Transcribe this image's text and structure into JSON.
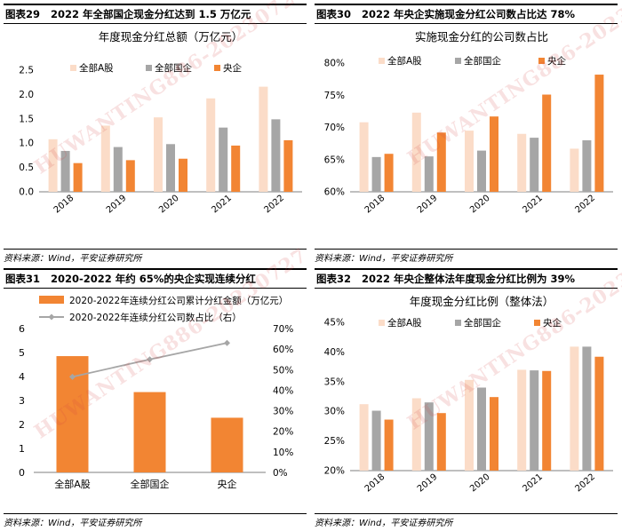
{
  "colors": {
    "all_a": "#FBDCC8",
    "soe": "#A6A6A6",
    "central": "#F28533",
    "line": "#A6A6A6"
  },
  "watermark": "HUWANTING886-20230727",
  "panels": {
    "p1": {
      "num": "图表29",
      "title": "2022 年全部国企现金分红达到 1.5 万亿元",
      "source": "资料来源：Wind，平安证券研究所"
    },
    "p2": {
      "num": "图表30",
      "title": "2022 年央企实施现金分红公司数占比达 78%",
      "source": "资料来源：Wind，平安证券研究所"
    },
    "p3": {
      "num": "图表31",
      "title": "2020-2022 年约 65%的央企实现连续分红",
      "source": "资料来源：Wind，平安证券研究所"
    },
    "p4": {
      "num": "图表32",
      "title": "2022 年央企整体法年度现金分红比例为 39%",
      "source": "资料来源：Wind，平安证券研究所"
    }
  },
  "chart_data": [
    {
      "id": "c1",
      "type": "bar",
      "title": "年度现金分红总额（万亿元）",
      "categories": [
        "2018",
        "2019",
        "2020",
        "2021",
        "2022"
      ],
      "series": [
        {
          "name": "全部A股",
          "values": [
            1.08,
            1.36,
            1.53,
            1.92,
            2.16
          ]
        },
        {
          "name": "全部国企",
          "values": [
            0.84,
            0.92,
            0.98,
            1.32,
            1.49
          ]
        },
        {
          "name": "央企",
          "values": [
            0.59,
            0.65,
            0.68,
            0.95,
            1.06
          ]
        }
      ],
      "ylim": [
        0,
        2.5
      ],
      "yticks": [
        0,
        0.5,
        1.0,
        1.5,
        2.0,
        2.5
      ],
      "ytick_labels": [
        "0.0",
        "0.5",
        "1.0",
        "1.5",
        "2.0",
        "2.5"
      ]
    },
    {
      "id": "c2",
      "type": "bar",
      "title": "实施现金分红的公司数占比",
      "categories": [
        "2018",
        "2019",
        "2020",
        "2021",
        "2022"
      ],
      "series": [
        {
          "name": "全部A股",
          "values": [
            70.8,
            72.3,
            69.5,
            69.0,
            66.7
          ]
        },
        {
          "name": "全部国企",
          "values": [
            65.4,
            65.5,
            66.4,
            68.4,
            68.0
          ]
        },
        {
          "name": "央企",
          "values": [
            65.9,
            69.2,
            71.7,
            75.1,
            78.2
          ]
        }
      ],
      "ylim": [
        60,
        80
      ],
      "yticks": [
        60,
        65,
        70,
        75,
        80
      ],
      "ytick_labels": [
        "60%",
        "65%",
        "70%",
        "75%",
        "80%"
      ]
    },
    {
      "id": "c3",
      "type": "bar+line",
      "categories": [
        "全部A股",
        "全部国企",
        "央企"
      ],
      "bar_series": {
        "name": "2020-2022年连续分红公司累计分红金额（万亿元）",
        "values": [
          4.85,
          3.35,
          2.28
        ]
      },
      "line_series": {
        "name": "2020-2022年连续分红公司数占比（右）",
        "values": [
          46.5,
          55.0,
          63.0
        ]
      },
      "ylim_left": [
        0,
        6
      ],
      "yticks_left": [
        0,
        1,
        2,
        3,
        4,
        5,
        6
      ],
      "ytick_labels_left": [
        "0",
        "1",
        "2",
        "3",
        "4",
        "5",
        "6"
      ],
      "ylim_right": [
        0,
        70
      ],
      "yticks_right": [
        0,
        10,
        20,
        30,
        40,
        50,
        60,
        70
      ],
      "ytick_labels_right": [
        "0%",
        "10%",
        "20%",
        "30%",
        "40%",
        "50%",
        "60%",
        "70%"
      ]
    },
    {
      "id": "c4",
      "type": "bar",
      "title": "年度现金分红比例（整体法）",
      "categories": [
        "2018",
        "2019",
        "2020",
        "2021",
        "2022"
      ],
      "series": [
        {
          "name": "全部A股",
          "values": [
            31.2,
            32.2,
            35.3,
            37.0,
            40.9
          ]
        },
        {
          "name": "全部国企",
          "values": [
            30.1,
            31.5,
            34.0,
            36.9,
            40.9
          ]
        },
        {
          "name": "央企",
          "values": [
            28.6,
            29.7,
            32.4,
            36.8,
            39.2
          ]
        }
      ],
      "ylim": [
        20,
        45
      ],
      "yticks": [
        20,
        25,
        30,
        35,
        40,
        45
      ],
      "ytick_labels": [
        "20%",
        "25%",
        "30%",
        "35%",
        "40%",
        "45%"
      ]
    }
  ]
}
